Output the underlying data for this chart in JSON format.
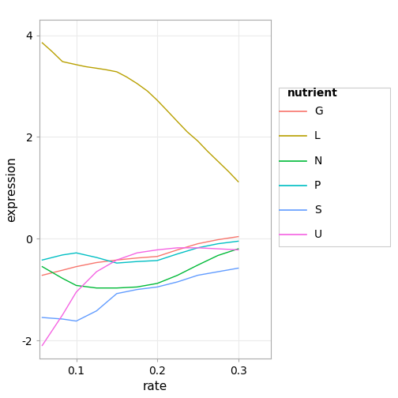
{
  "title": "",
  "xlabel": "rate",
  "ylabel": "expression",
  "legend_title": "nutrient",
  "xlim": [
    0.055,
    0.34
  ],
  "ylim": [
    -2.35,
    4.3
  ],
  "xticks": [
    0.1,
    0.2,
    0.3
  ],
  "yticks": [
    -2,
    0,
    2,
    4
  ],
  "background_color": "#ffffff",
  "panel_background": "#ffffff",
  "grid_color": "#ebebeb",
  "series": {
    "G": {
      "color": "#F8766D",
      "x": [
        0.058,
        0.083,
        0.1,
        0.125,
        0.15,
        0.175,
        0.2,
        0.225,
        0.25,
        0.275,
        0.3
      ],
      "y": [
        -0.72,
        -0.62,
        -0.55,
        -0.47,
        -0.42,
        -0.38,
        -0.35,
        -0.22,
        -0.1,
        -0.02,
        0.04
      ]
    },
    "L": {
      "color": "#B8A000",
      "x": [
        0.058,
        0.07,
        0.083,
        0.1,
        0.112,
        0.125,
        0.137,
        0.15,
        0.162,
        0.175,
        0.188,
        0.2,
        0.212,
        0.225,
        0.237,
        0.25,
        0.262,
        0.275,
        0.288,
        0.3
      ],
      "y": [
        3.85,
        3.68,
        3.48,
        3.42,
        3.38,
        3.35,
        3.32,
        3.28,
        3.18,
        3.05,
        2.9,
        2.72,
        2.52,
        2.3,
        2.1,
        1.92,
        1.72,
        1.52,
        1.32,
        1.12
      ]
    },
    "N": {
      "color": "#00BA38",
      "x": [
        0.058,
        0.083,
        0.1,
        0.125,
        0.15,
        0.175,
        0.2,
        0.225,
        0.25,
        0.275,
        0.3
      ],
      "y": [
        -0.55,
        -0.78,
        -0.92,
        -0.97,
        -0.97,
        -0.95,
        -0.88,
        -0.72,
        -0.52,
        -0.33,
        -0.2
      ]
    },
    "P": {
      "color": "#00BFC4",
      "x": [
        0.058,
        0.083,
        0.1,
        0.125,
        0.15,
        0.175,
        0.2,
        0.225,
        0.25,
        0.275,
        0.3
      ],
      "y": [
        -0.42,
        -0.32,
        -0.28,
        -0.37,
        -0.48,
        -0.45,
        -0.43,
        -0.3,
        -0.18,
        -0.1,
        -0.05
      ]
    },
    "S": {
      "color": "#619CFF",
      "x": [
        0.058,
        0.083,
        0.1,
        0.125,
        0.15,
        0.175,
        0.2,
        0.225,
        0.25,
        0.275,
        0.3
      ],
      "y": [
        -1.55,
        -1.58,
        -1.62,
        -1.42,
        -1.08,
        -1.0,
        -0.95,
        -0.85,
        -0.72,
        -0.65,
        -0.58
      ]
    },
    "U": {
      "color": "#F564E3",
      "x": [
        0.058,
        0.083,
        0.1,
        0.125,
        0.15,
        0.175,
        0.2,
        0.225,
        0.25,
        0.275,
        0.3
      ],
      "y": [
        -2.1,
        -1.5,
        -1.05,
        -0.65,
        -0.42,
        -0.28,
        -0.22,
        -0.18,
        -0.18,
        -0.2,
        -0.22
      ]
    }
  },
  "legend_order": [
    "G",
    "L",
    "N",
    "P",
    "S",
    "U"
  ]
}
